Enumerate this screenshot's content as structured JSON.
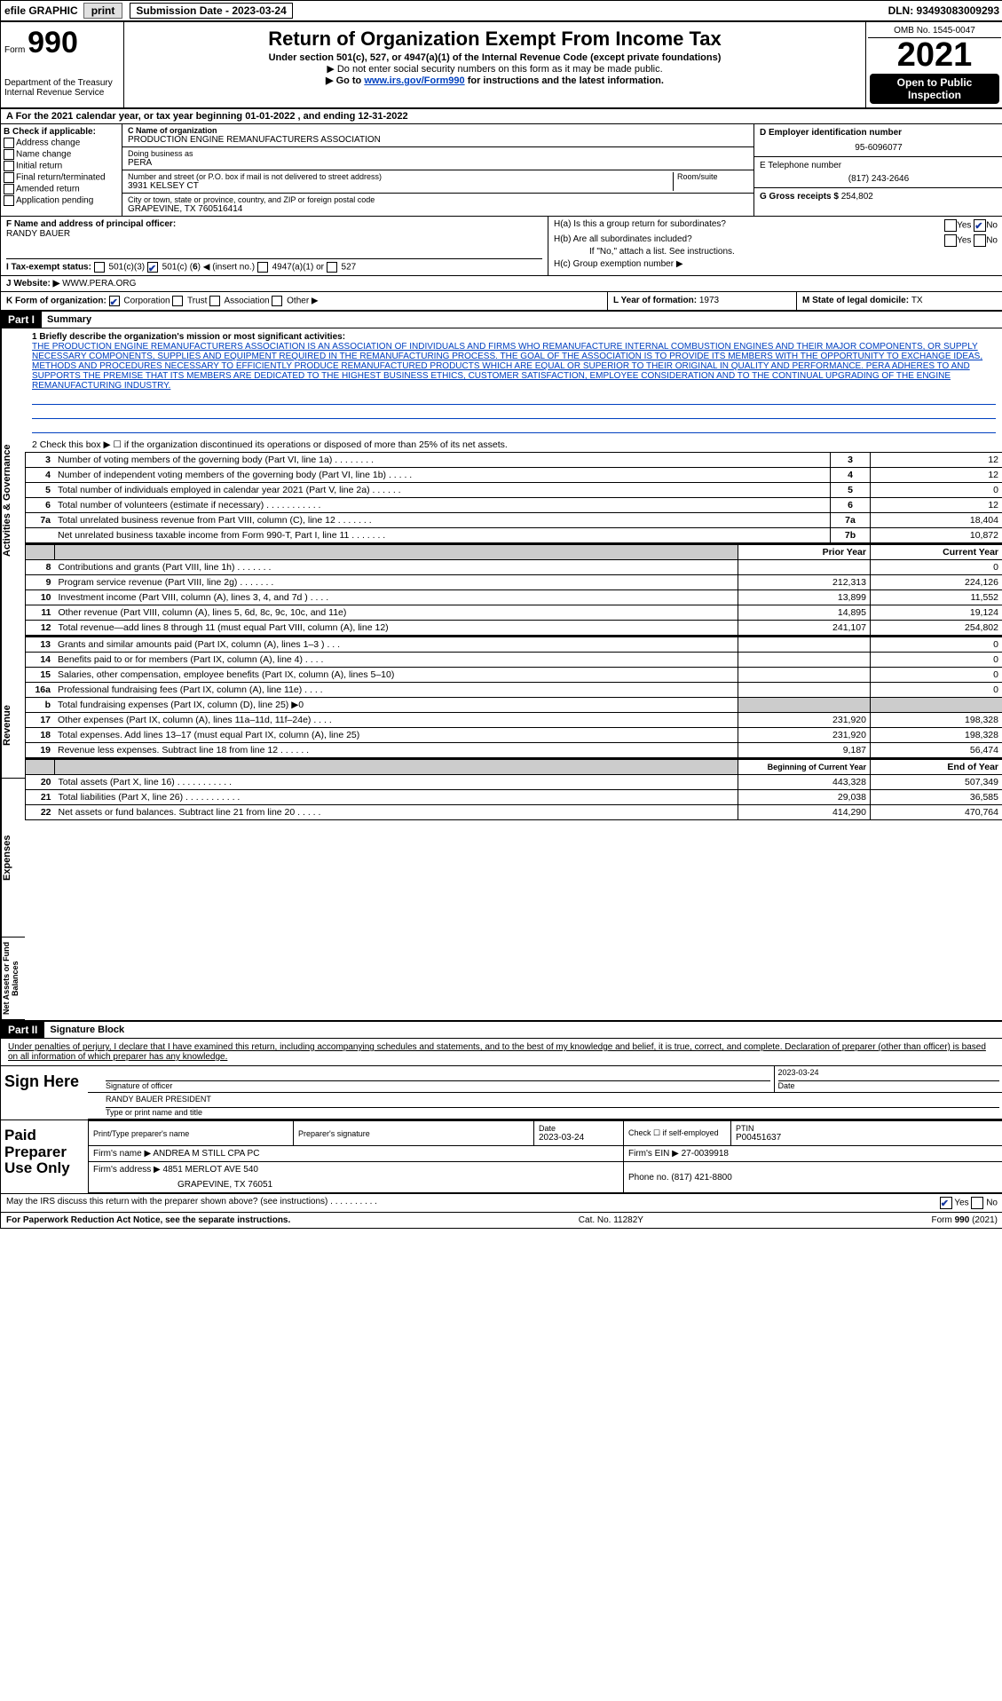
{
  "top_bar": {
    "efile_label": "efile GRAPHIC",
    "print_btn": "print",
    "submission_label": "Submission Date - 2023-03-24",
    "dln": "DLN: 93493083009293"
  },
  "header": {
    "form_prefix": "Form",
    "form_number": "990",
    "dept": "Department of the Treasury",
    "irs": "Internal Revenue Service",
    "title": "Return of Organization Exempt From Income Tax",
    "subtitle": "Under section 501(c), 527, or 4947(a)(1) of the Internal Revenue Code (except private foundations)",
    "note1": "▶ Do not enter social security numbers on this form as it may be made public.",
    "note2_prefix": "▶ Go to ",
    "note2_link": "www.irs.gov/Form990",
    "note2_suffix": " for instructions and the latest information.",
    "omb": "OMB No. 1545-0047",
    "year": "2021",
    "open_public": "Open to Public Inspection"
  },
  "row_a": "A For the 2021 calendar year, or tax year beginning 01-01-2022  , and ending 12-31-2022",
  "section_b": {
    "label_b": "B Check if applicable:",
    "checks": [
      "Address change",
      "Name change",
      "Initial return",
      "Final return/terminated",
      "Amended return",
      "Application pending"
    ],
    "c_label": "C Name of organization",
    "c_name": "PRODUCTION ENGINE REMANUFACTURERS ASSOCIATION",
    "dba_label": "Doing business as",
    "dba": "PERA",
    "street_label": "Number and street (or P.O. box if mail is not delivered to street address)",
    "room_label": "Room/suite",
    "street": "3931 KELSEY CT",
    "city_label": "City or town, state or province, country, and ZIP or foreign postal code",
    "city": "GRAPEVINE, TX  760516414",
    "d_label": "D Employer identification number",
    "d_ein": "95-6096077",
    "e_label": "E Telephone number",
    "e_phone": "(817) 243-2646",
    "g_label": "G Gross receipts $ ",
    "g_val": "254,802"
  },
  "section_f": {
    "f_label": "F Name and address of principal officer:",
    "f_name": "RANDY BAUER",
    "ha_label": "H(a)  Is this a group return for subordinates?",
    "hb_label": "H(b)  Are all subordinates included?",
    "hb_note": "If \"No,\" attach a list. See instructions.",
    "hc_label": "H(c)  Group exemption number ▶",
    "yes": "Yes",
    "no": "No"
  },
  "row_i": {
    "label": "I  Tax-exempt status:",
    "opt1": "501(c)(3)",
    "opt2_pre": "501(c) (",
    "opt2_num": "6",
    "opt2_post": ") ◀ (insert no.)",
    "opt3": "4947(a)(1) or",
    "opt4": "527"
  },
  "row_j": {
    "label": "J  Website: ▶",
    "value": "WWW.PERA.ORG"
  },
  "row_k": {
    "label": "K Form of organization:",
    "opts": [
      "Corporation",
      "Trust",
      "Association",
      "Other ▶"
    ],
    "l_label": "L Year of formation: ",
    "l_val": "1973",
    "m_label": "M State of legal domicile: ",
    "m_val": "TX"
  },
  "part1": {
    "header": "Part I",
    "title": "Summary",
    "vlabel1": "Activities & Governance",
    "vlabel2": "Revenue",
    "vlabel3": "Expenses",
    "vlabel4": "Net Assets or Fund Balances",
    "line1_label": "1   Briefly describe the organization's mission or most significant activities:",
    "mission": "THE PRODUCTION ENGINE REMANUFACTURERS ASSOCIATION IS AN ASSOCIATION OF INDIVIDUALS AND FIRMS WHO REMANUFACTURE INTERNAL COMBUSTION ENGINES AND THEIR MAJOR COMPONENTS, OR SUPPLY NECESSARY COMPONENTS, SUPPLIES AND EQUIPMENT REQUIRED IN THE REMANUFACTURING PROCESS. THE GOAL OF THE ASSOCIATION IS TO PROVIDE ITS MEMBERS WITH THE OPPORTUNITY TO EXCHANGE IDEAS, METHODS AND PROCEDURES NECESSARY TO EFFICIENTLY PRODUCE REMANUFACTURED PRODUCTS WHICH ARE EQUAL OR SUPERIOR TO THEIR ORIGINAL IN QUALITY AND PERFORMANCE. PERA ADHERES TO AND SUPPORTS THE PREMISE THAT ITS MEMBERS ARE DEDICATED TO THE HIGHEST BUSINESS ETHICS, CUSTOMER SATISFACTION, EMPLOYEE CONSIDERATION AND TO THE CONTINUAL UPGRADING OF THE ENGINE REMANUFACTURING INDUSTRY.",
    "line2": "2   Check this box ▶ ☐ if the organization discontinued its operations or disposed of more than 25% of its net assets.",
    "rows_gov": [
      {
        "n": "3",
        "desc": "Number of voting members of the governing body (Part VI, line 1a)   .    .    .    .    .    .    .    .",
        "col": "3",
        "val": "12"
      },
      {
        "n": "4",
        "desc": "Number of independent voting members of the governing body (Part VI, line 1b)  .    .    .    .    .",
        "col": "4",
        "val": "12"
      },
      {
        "n": "5",
        "desc": "Total number of individuals employed in calendar year 2021 (Part V, line 2a)  .    .    .    .    .    .",
        "col": "5",
        "val": "0"
      },
      {
        "n": "6",
        "desc": "Total number of volunteers (estimate if necessary)   .    .    .    .    .    .    .    .    .    .    .",
        "col": "6",
        "val": "12"
      },
      {
        "n": "7a",
        "desc": "Total unrelated business revenue from Part VIII, column (C), line 12   .    .    .    .    .    .    .",
        "col": "7a",
        "val": "18,404"
      },
      {
        "n": "",
        "desc": "Net unrelated business taxable income from Form 990-T, Part I, line 11  .    .    .    .    .    .    .",
        "col": "7b",
        "val": "10,872"
      }
    ],
    "col_prior": "Prior Year",
    "col_current": "Current Year",
    "rows_rev": [
      {
        "n": "8",
        "desc": "Contributions and grants (Part VIII, line 1h)   .    .    .    .    .    .    .",
        "prior": "",
        "current": "0"
      },
      {
        "n": "9",
        "desc": "Program service revenue (Part VIII, line 2g)  .    .    .    .    .    .    .",
        "prior": "212,313",
        "current": "224,126"
      },
      {
        "n": "10",
        "desc": "Investment income (Part VIII, column (A), lines 3, 4, and 7d )  .    .    .    .",
        "prior": "13,899",
        "current": "11,552"
      },
      {
        "n": "11",
        "desc": "Other revenue (Part VIII, column (A), lines 5, 6d, 8c, 9c, 10c, and 11e)",
        "prior": "14,895",
        "current": "19,124"
      },
      {
        "n": "12",
        "desc": "Total revenue—add lines 8 through 11 (must equal Part VIII, column (A), line 12)",
        "prior": "241,107",
        "current": "254,802"
      }
    ],
    "rows_exp": [
      {
        "n": "13",
        "desc": "Grants and similar amounts paid (Part IX, column (A), lines 1–3 )   .    .    .",
        "prior": "",
        "current": "0"
      },
      {
        "n": "14",
        "desc": "Benefits paid to or for members (Part IX, column (A), line 4)  .    .    .    .",
        "prior": "",
        "current": "0"
      },
      {
        "n": "15",
        "desc": "Salaries, other compensation, employee benefits (Part IX, column (A), lines 5–10)",
        "prior": "",
        "current": "0"
      },
      {
        "n": "16a",
        "desc": "Professional fundraising fees (Part IX, column (A), line 11e)  .    .    .    .",
        "prior": "",
        "current": "0"
      },
      {
        "n": "b",
        "desc": "Total fundraising expenses (Part IX, column (D), line 25) ▶0",
        "prior": "GREY",
        "current": "GREY"
      },
      {
        "n": "17",
        "desc": "Other expenses (Part IX, column (A), lines 11a–11d, 11f–24e)   .    .    .    .",
        "prior": "231,920",
        "current": "198,328"
      },
      {
        "n": "18",
        "desc": "Total expenses. Add lines 13–17 (must equal Part IX, column (A), line 25)",
        "prior": "231,920",
        "current": "198,328"
      },
      {
        "n": "19",
        "desc": "Revenue less expenses. Subtract line 18 from line 12  .    .    .    .    .    .",
        "prior": "9,187",
        "current": "56,474"
      }
    ],
    "col_begin": "Beginning of Current Year",
    "col_end": "End of Year",
    "rows_net": [
      {
        "n": "20",
        "desc": "Total assets (Part X, line 16)   .    .    .    .    .    .    .    .    .    .    .",
        "prior": "443,328",
        "current": "507,349"
      },
      {
        "n": "21",
        "desc": "Total liabilities (Part X, line 26)  .    .    .    .    .    .    .    .    .    .    .",
        "prior": "29,038",
        "current": "36,585"
      },
      {
        "n": "22",
        "desc": "Net assets or fund balances. Subtract line 21 from line 20  .    .    .    .    .",
        "prior": "414,290",
        "current": "470,764"
      }
    ]
  },
  "part2": {
    "header": "Part II",
    "title": "Signature Block",
    "declaration": "Under penalties of perjury, I declare that I have examined this return, including accompanying schedules and statements, and to the best of my knowledge and belief, it is true, correct, and complete. Declaration of preparer (other than officer) is based on all information of which preparer has any knowledge.",
    "sign_here": "Sign Here",
    "sig_officer": "Signature of officer",
    "date_label": "Date",
    "sig_date": "2023-03-24",
    "name_title": "RANDY BAUER  PRESIDENT",
    "name_title_label": "Type or print name and title",
    "paid_label": "Paid Preparer Use Only",
    "prep_name_label": "Print/Type preparer's name",
    "prep_sig_label": "Preparer's signature",
    "prep_date_label": "Date",
    "prep_date": "2023-03-24",
    "check_self": "Check ☐ if self-employed",
    "ptin_label": "PTIN",
    "ptin": "P00451637",
    "firm_name_label": "Firm's name    ▶ ",
    "firm_name": "ANDREA M STILL CPA PC",
    "firm_ein_label": "Firm's EIN ▶ ",
    "firm_ein": "27-0039918",
    "firm_addr_label": "Firm's address ▶ ",
    "firm_addr1": "4851 MERLOT AVE 540",
    "firm_addr2": "GRAPEVINE, TX  76051",
    "phone_label": "Phone no. ",
    "phone": "(817) 421-8800",
    "may_discuss": "May the IRS discuss this return with the preparer shown above? (see instructions)   .    .    .    .    .    .    .    .    .    .",
    "yes": "Yes",
    "no": "No"
  },
  "footer": {
    "left": "For Paperwork Reduction Act Notice, see the separate instructions.",
    "mid": "Cat. No. 11282Y",
    "right": "Form 990 (2021)"
  }
}
